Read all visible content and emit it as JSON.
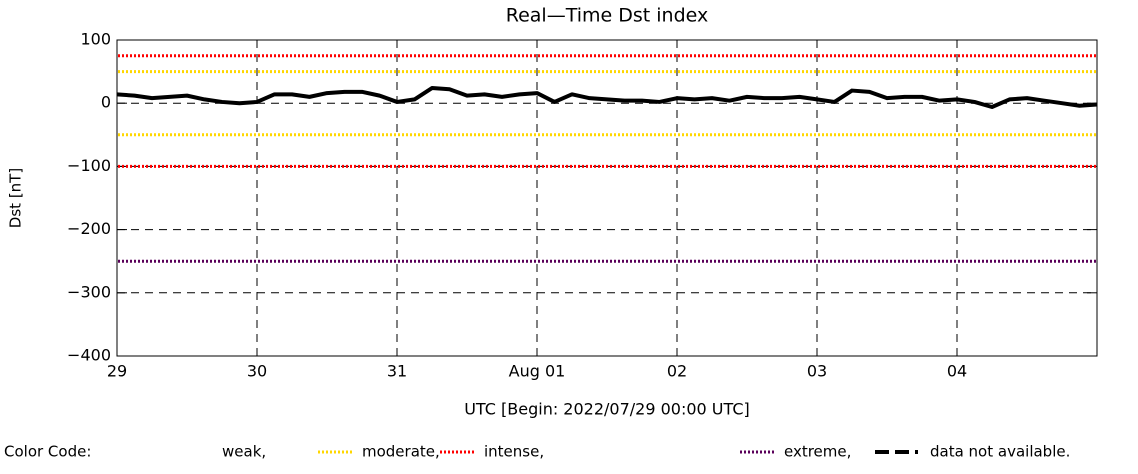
{
  "chart_data": {
    "type": "line",
    "title": "Real—Time Dst index",
    "ylabel": "Dst [nT]",
    "xlabel": "UTC [Begin: 2022/07/29 00:00 UTC]",
    "xlim": [
      0,
      7
    ],
    "xticks": [
      {
        "value": 0,
        "label": "29"
      },
      {
        "value": 1,
        "label": "30"
      },
      {
        "value": 2,
        "label": "31"
      },
      {
        "value": 3,
        "label": "Aug 01"
      },
      {
        "value": 4,
        "label": "02"
      },
      {
        "value": 5,
        "label": "03"
      },
      {
        "value": 6,
        "label": "04"
      }
    ],
    "ylim": [
      -400,
      100
    ],
    "yticks": [
      {
        "value": -400,
        "label": "−400"
      },
      {
        "value": -300,
        "label": "−300"
      },
      {
        "value": -200,
        "label": "−200"
      },
      {
        "value": -100,
        "label": "−100"
      },
      0,
      100
    ],
    "grid": true,
    "x": [
      0,
      0.125,
      0.25,
      0.375,
      0.5,
      0.625,
      0.75,
      0.875,
      1,
      1.125,
      1.25,
      1.375,
      1.5,
      1.625,
      1.75,
      1.875,
      2,
      2.125,
      2.25,
      2.375,
      2.5,
      2.625,
      2.75,
      2.875,
      3,
      3.125,
      3.25,
      3.375,
      3.5,
      3.625,
      3.75,
      3.875,
      4,
      4.125,
      4.25,
      4.375,
      4.5,
      4.625,
      4.75,
      4.875,
      5,
      5.125,
      5.25,
      5.375,
      5.5,
      5.625,
      5.75,
      5.875,
      6,
      6.125,
      6.25,
      6.375,
      6.5,
      6.625,
      6.75,
      6.875,
      7
    ],
    "series": [
      {
        "name": "Dst",
        "color": "#000000",
        "values": [
          14,
          12,
          8,
          10,
          12,
          6,
          2,
          0,
          2,
          14,
          14,
          10,
          16,
          18,
          18,
          12,
          2,
          6,
          24,
          22,
          12,
          14,
          10,
          14,
          16,
          2,
          14,
          8,
          6,
          4,
          4,
          2,
          8,
          6,
          8,
          4,
          10,
          8,
          8,
          10,
          6,
          2,
          20,
          18,
          8,
          10,
          10,
          4,
          6,
          2,
          -6,
          6,
          8,
          4,
          0,
          -4,
          -2
        ]
      }
    ],
    "levels": [
      {
        "name": "moderate,",
        "color": "#ffd700",
        "values": [
          50,
          -50
        ]
      },
      {
        "name": "intense,",
        "color": "#ff0000",
        "values": [
          75,
          -100
        ]
      },
      {
        "name": "extreme,",
        "color": "#5a005a",
        "values": [
          -250
        ]
      }
    ],
    "legend": {
      "title": "Color Code:",
      "weak": "weak,",
      "missing": "data not available."
    }
  }
}
